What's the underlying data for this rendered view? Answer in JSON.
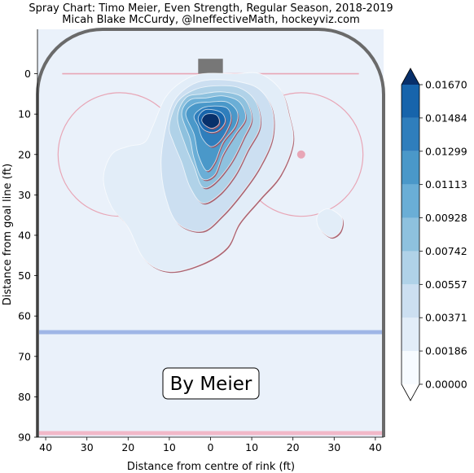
{
  "chart_data": {
    "type": "heatmap",
    "subtype": "filled-contour spray chart on hockey rink",
    "title_line1": "Spray Chart: Timo Meier, Even Strength, Regular Season, 2018-2019",
    "title_line2": "Micah Blake McCurdy, @IneffectiveMath, hockeyviz.com",
    "xlabel": "Distance from centre of rink (ft)",
    "ylabel": "Distance from goal line (ft)",
    "xlim": [
      -42,
      42
    ],
    "ylim": [
      90,
      -11
    ],
    "xticks": [
      -40,
      -30,
      -20,
      -10,
      0,
      10,
      20,
      30,
      40
    ],
    "xtick_labels": [
      "40",
      "30",
      "20",
      "10",
      "0",
      "10",
      "20",
      "30",
      "40"
    ],
    "yticks": [
      0,
      10,
      20,
      30,
      40,
      50,
      60,
      70,
      80,
      90
    ],
    "ytick_labels": [
      "0",
      "10",
      "20",
      "30",
      "40",
      "50",
      "60",
      "70",
      "80",
      "90"
    ],
    "annotation": "By Meier",
    "colorbar": {
      "levels": [
        0.0,
        0.00186,
        0.00371,
        0.00557,
        0.00742,
        0.00928,
        0.01113,
        0.01299,
        0.01484,
        0.0167
      ],
      "labels": [
        "0.00000",
        "0.00186",
        "0.00371",
        "0.00557",
        "0.00742",
        "0.00928",
        "0.01113",
        "0.01299",
        "0.01484",
        "0.01670"
      ],
      "colors": [
        "#f7fbff",
        "#e2edf8",
        "#ccdff1",
        "#b0d2e8",
        "#8ec1de",
        "#6aaed6",
        "#4a98c9",
        "#2f7ebc",
        "#1764ab",
        "#084a91"
      ],
      "extend": "both",
      "over_color": "#08306b"
    },
    "contours": [
      {
        "level": 0.00186,
        "ring": [
          [
            -26,
            26
          ],
          [
            -24,
            20
          ],
          [
            -20,
            18
          ],
          [
            -16,
            17
          ],
          [
            -14,
            13
          ],
          [
            -11,
            6
          ],
          [
            -7,
            2
          ],
          [
            -2,
            0
          ],
          [
            6,
            0
          ],
          [
            12,
            0
          ],
          [
            17,
            4
          ],
          [
            19,
            10
          ],
          [
            20,
            17
          ],
          [
            17,
            25
          ],
          [
            12,
            31
          ],
          [
            7,
            37
          ],
          [
            4,
            43
          ],
          [
            -2,
            47
          ],
          [
            -10,
            49
          ],
          [
            -16,
            46
          ],
          [
            -20,
            38
          ],
          [
            -24,
            33
          ]
        ]
      },
      {
        "level": 0.00186,
        "ring": [
          [
            26,
            35
          ],
          [
            28,
            33.5
          ],
          [
            30,
            34
          ],
          [
            32,
            36
          ],
          [
            31.5,
            39
          ],
          [
            29.5,
            40.5
          ],
          [
            27.5,
            39.5
          ],
          [
            26,
            37.5
          ]
        ]
      },
      {
        "level": 0.00371,
        "ring": [
          [
            -12,
            22
          ],
          [
            -11,
            14
          ],
          [
            -9,
            7
          ],
          [
            -5,
            3
          ],
          [
            0,
            1.5
          ],
          [
            7,
            2
          ],
          [
            12,
            4
          ],
          [
            15,
            9
          ],
          [
            15,
            16
          ],
          [
            12,
            23
          ],
          [
            8,
            29
          ],
          [
            3,
            35
          ],
          [
            -2,
            39
          ],
          [
            -8,
            37
          ],
          [
            -11,
            30
          ]
        ]
      },
      {
        "level": 0.00557,
        "ring": [
          [
            -10,
            13
          ],
          [
            -8,
            7
          ],
          [
            -4,
            4
          ],
          [
            1,
            3
          ],
          [
            7,
            3.5
          ],
          [
            11,
            7
          ],
          [
            12,
            13
          ],
          [
            9,
            19
          ],
          [
            6,
            25
          ],
          [
            2,
            30
          ],
          [
            -2,
            32
          ],
          [
            -5,
            28
          ],
          [
            -7,
            22
          ],
          [
            -9,
            17
          ]
        ]
      },
      {
        "level": 0.00742,
        "ring": [
          [
            -8,
            11
          ],
          [
            -6,
            6
          ],
          [
            -2,
            5
          ],
          [
            3,
            4.5
          ],
          [
            8,
            6
          ],
          [
            10,
            11
          ],
          [
            8,
            16
          ],
          [
            5,
            22
          ],
          [
            1,
            27
          ],
          [
            -2,
            28
          ],
          [
            -4,
            23
          ],
          [
            -6,
            18
          ]
        ]
      },
      {
        "level": 0.00928,
        "ring": [
          [
            -7,
            10
          ],
          [
            -5,
            6.5
          ],
          [
            -1,
            6
          ],
          [
            3,
            5.5
          ],
          [
            7,
            7
          ],
          [
            8.5,
            11
          ],
          [
            6,
            15
          ],
          [
            3,
            20
          ],
          [
            1,
            25
          ],
          [
            -2,
            26
          ],
          [
            -4,
            21
          ],
          [
            -5,
            16
          ]
        ]
      },
      {
        "level": 0.01113,
        "ring": [
          [
            -6,
            10
          ],
          [
            -4,
            7.5
          ],
          [
            0,
            7
          ],
          [
            4,
            7
          ],
          [
            6.5,
            9.5
          ],
          [
            6,
            13
          ],
          [
            3,
            17
          ],
          [
            1,
            22
          ],
          [
            -1,
            24
          ],
          [
            -3,
            20
          ],
          [
            -4,
            15
          ]
        ]
      },
      {
        "level": 0.01299,
        "ring": [
          [
            -4,
            10.5
          ],
          [
            -2,
            8.5
          ],
          [
            1,
            8
          ],
          [
            4,
            8.5
          ],
          [
            5,
            11
          ],
          [
            4,
            14
          ],
          [
            2,
            17
          ],
          [
            0,
            18
          ],
          [
            -2,
            16
          ],
          [
            -3,
            13
          ]
        ]
      },
      {
        "level": 0.01484,
        "ring": [
          [
            -3,
            11
          ],
          [
            -1.5,
            9
          ],
          [
            1,
            9
          ],
          [
            3,
            10
          ],
          [
            3.5,
            12
          ],
          [
            2,
            14
          ],
          [
            0,
            14.5
          ],
          [
            -2,
            13.5
          ]
        ]
      },
      {
        "level": 0.0167,
        "ring": [
          [
            -2,
            11
          ],
          [
            -1,
            10
          ],
          [
            1,
            10
          ],
          [
            2,
            11
          ],
          [
            2,
            12.5
          ],
          [
            0.5,
            13.5
          ],
          [
            -1,
            13
          ],
          [
            -2,
            12
          ]
        ]
      }
    ]
  }
}
